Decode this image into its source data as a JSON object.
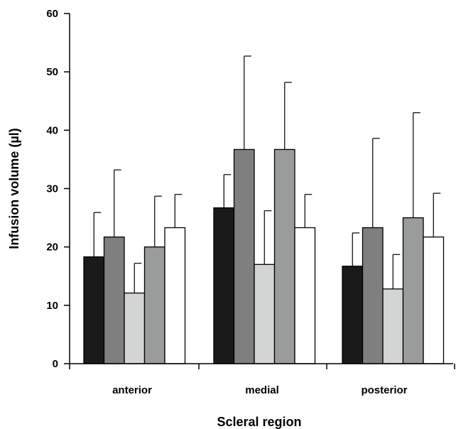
{
  "chart_data": {
    "type": "bar",
    "title": "",
    "xlabel": "Scleral region",
    "ylabel": "Infusion volume (µl)",
    "ylim": [
      0,
      60
    ],
    "yticks": [
      "0",
      "10",
      "20",
      "30",
      "40",
      "50",
      "60"
    ],
    "categories": [
      "anterior",
      "medial",
      "posterior"
    ],
    "error_bars": "upper only",
    "grid": false,
    "legend": "none",
    "series": [
      {
        "color": "#1a1a1a",
        "values": [
          18.3,
          26.7,
          16.7
        ],
        "errors": [
          7.6,
          5.7,
          5.7
        ]
      },
      {
        "color": "#7f7f7f",
        "values": [
          21.7,
          36.7,
          23.3
        ],
        "errors": [
          11.5,
          16.0,
          15.3
        ]
      },
      {
        "color": "#d3d5d4",
        "values": [
          12.1,
          17.0,
          12.8
        ],
        "errors": [
          5.1,
          9.2,
          5.9
        ]
      },
      {
        "color": "#9a9c9b",
        "values": [
          20.0,
          36.7,
          25.0
        ],
        "errors": [
          8.7,
          11.5,
          18.0
        ]
      },
      {
        "color": "#ffffff",
        "values": [
          23.3,
          23.3,
          21.7
        ],
        "errors": [
          5.7,
          5.7,
          7.5
        ]
      }
    ]
  }
}
